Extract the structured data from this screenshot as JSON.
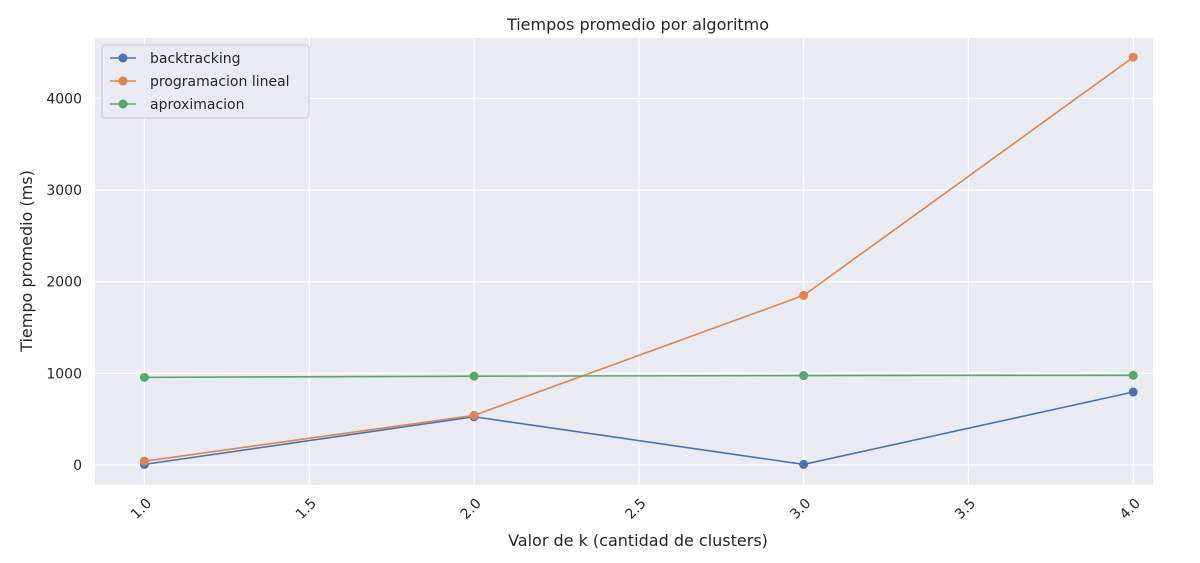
{
  "chart_data": {
    "type": "line",
    "title": "Tiempos promedio por algoritmo",
    "xlabel": "Valor de k (cantidad de clusters)",
    "ylabel": "Tiempo promedio (ms)",
    "xlim": [
      0.85,
      4.06
    ],
    "ylim": [
      -220,
      4660
    ],
    "xticks": [
      1.0,
      1.5,
      2.0,
      2.5,
      3.0,
      3.5,
      4.0
    ],
    "xtick_labels": [
      "1.0",
      "1.5",
      "2.0",
      "2.5",
      "3.0",
      "3.5",
      "4.0"
    ],
    "yticks": [
      0,
      1000,
      2000,
      3000,
      4000
    ],
    "ytick_labels": [
      "0",
      "1000",
      "2000",
      "3000",
      "4000"
    ],
    "grid": true,
    "legend_position": "top-left",
    "x": [
      1,
      2,
      3,
      4
    ],
    "series": [
      {
        "name": "backtracking",
        "color": "#4c72b0",
        "values": [
          5,
          525,
          5,
          795
        ]
      },
      {
        "name": "programacion lineal",
        "color": "#dd8452",
        "values": [
          40,
          540,
          1850,
          4450
        ]
      },
      {
        "name": "aproximacion",
        "color": "#55a868",
        "values": [
          955,
          968,
          975,
          978
        ]
      }
    ]
  }
}
